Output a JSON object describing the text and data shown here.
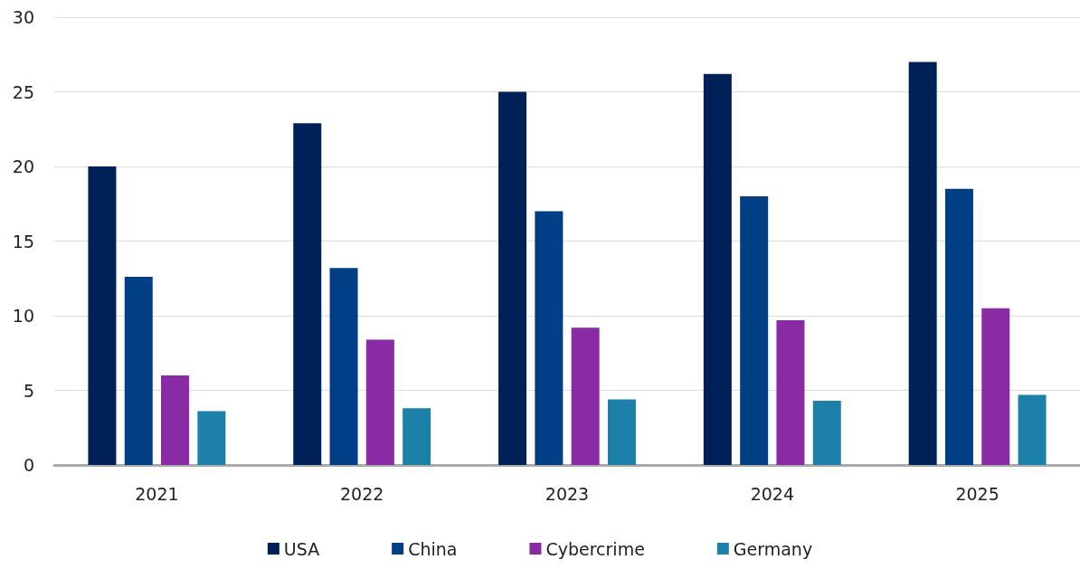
{
  "chart_data": {
    "type": "bar",
    "categories": [
      "2021",
      "2022",
      "2023",
      "2024",
      "2025"
    ],
    "series": [
      {
        "name": "USA",
        "color": "#002157",
        "values": [
          20,
          22.9,
          25,
          26.2,
          27
        ]
      },
      {
        "name": "China",
        "color": "#003f85",
        "values": [
          12.6,
          13.2,
          17,
          18,
          18.5
        ]
      },
      {
        "name": "Cybercrime",
        "color": "#8a2aa4",
        "values": [
          6,
          8.4,
          9.2,
          9.7,
          10.5
        ]
      },
      {
        "name": "Germany",
        "color": "#1d80a9",
        "values": [
          3.6,
          3.8,
          4.4,
          4.3,
          4.7
        ]
      }
    ],
    "ylim": [
      0,
      30
    ],
    "yticks": [
      0,
      5,
      10,
      15,
      20,
      25,
      30
    ],
    "grid": "y",
    "legend": "bottom"
  }
}
